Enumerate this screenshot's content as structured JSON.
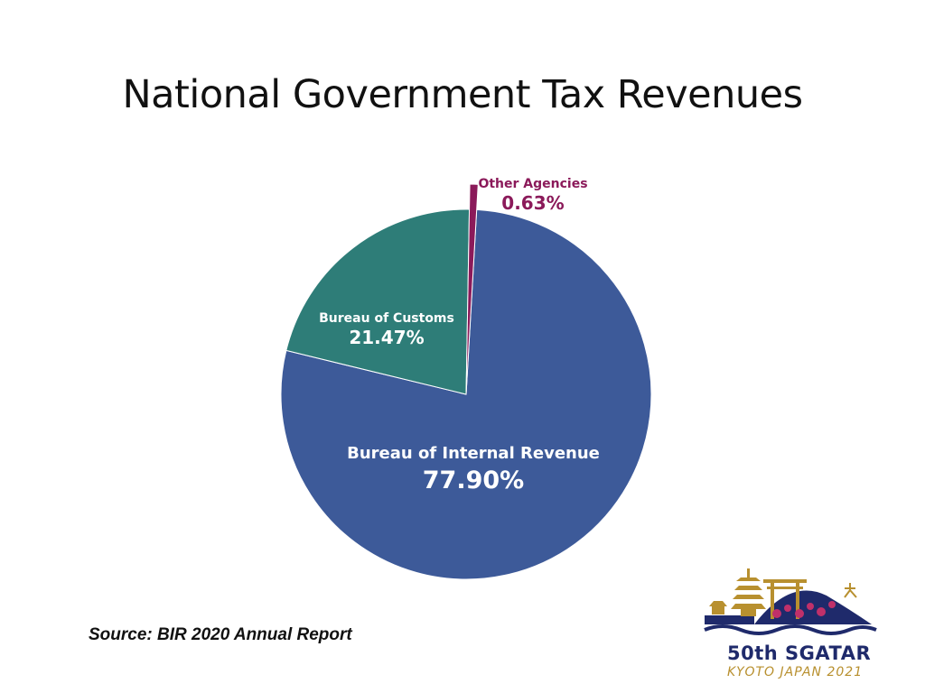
{
  "slide": {
    "title": "National Government Tax Revenues",
    "source": "Source: BIR 2020 Annual Report"
  },
  "logo": {
    "main_text": "50th SGATAR",
    "sub_text": "KYOTO JAPAN 2021",
    "colors": {
      "navy": "#1f2a6b",
      "gold": "#b8902f",
      "blossom": "#c0306a"
    }
  },
  "chart_data": {
    "type": "pie",
    "title": "",
    "slices": [
      {
        "label": "Bureau of Internal Revenue",
        "value": 77.9,
        "value_label": "77.90%",
        "color": "#3d5a99"
      },
      {
        "label": "Bureau of Customs",
        "value": 21.47,
        "value_label": "21.47%",
        "color": "#2e7d78"
      },
      {
        "label": "Other Agencies",
        "value": 0.63,
        "value_label": "0.63%",
        "color": "#8b1a5a"
      }
    ],
    "start": "top, clockwise"
  }
}
